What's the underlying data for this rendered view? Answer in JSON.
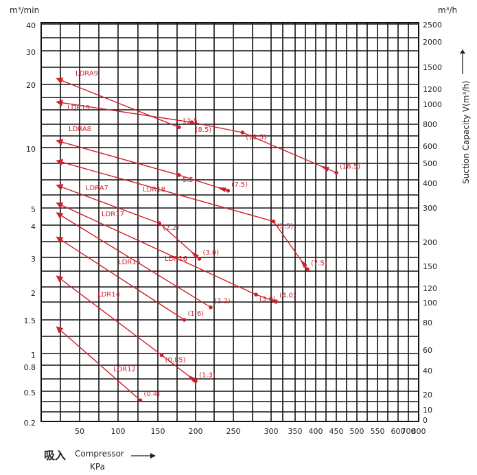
{
  "axes": {
    "left_unit": "m³/min",
    "right_unit": "m³/h",
    "right_label": "Suction Capacity V(m³/h)",
    "x_label_cn": "吸入",
    "x_label_en": "Compressor",
    "x_unit": "KPa"
  },
  "chart_data": {
    "type": "line",
    "x_ticks": [
      "50",
      "100",
      "150",
      "200",
      "250",
      "300",
      "350",
      "400",
      "450",
      "500",
      "550",
      "600",
      "700",
      "800"
    ],
    "y_left_ticks": [
      "40",
      "30",
      "20",
      "10",
      "5",
      "4",
      "3",
      "2",
      "1.5",
      "1",
      "0.8",
      "0.5",
      "0.2"
    ],
    "y_right_ticks": [
      "2500",
      "2000",
      "1500",
      "1200",
      "1000",
      "800",
      "600",
      "500",
      "400",
      "300",
      "200",
      "150",
      "120",
      "100",
      "80",
      "60",
      "40",
      "20",
      "10",
      "0"
    ],
    "series": [
      {
        "name": "LDRA9",
        "points": [
          [
            178,
            12.5
          ],
          [
            20,
            21.5
          ]
        ],
        "labels": [
          "12.5"
        ]
      },
      {
        "name": "LDR19",
        "points": [
          [
            450,
            7.5
          ],
          [
            262,
            11.8
          ],
          [
            195,
            13.2
          ],
          [
            20,
            16.5
          ]
        ],
        "labels": [
          "(18.5)",
          "(12.5)",
          "(8.5)"
        ]
      },
      {
        "name": "LDRA8",
        "points": [
          [
            243,
            6.1
          ],
          [
            178,
            7.3
          ],
          [
            20,
            10.8
          ]
        ],
        "labels": [
          "(7.5)",
          "5.5"
        ]
      },
      {
        "name": "LDR18",
        "points": [
          [
            380,
            2.6
          ],
          [
            305,
            4.2
          ],
          [
            20,
            8.6
          ]
        ],
        "labels": [
          "(7.5)",
          "(5.5)"
        ]
      },
      {
        "name": "LDRA7",
        "points": [
          [
            205,
            2.95
          ],
          [
            152,
            4.1
          ],
          [
            20,
            6.5
          ]
        ],
        "labels": [
          "(3.0)",
          "(2.2)"
        ]
      },
      {
        "name": "LDR17",
        "points": [
          [
            310,
            1.8
          ],
          [
            280,
            1.93
          ],
          [
            20,
            5.3
          ]
        ],
        "labels": [
          "(4.0)",
          "(3.0)"
        ]
      },
      {
        "name": "LDR16",
        "points": [
          [
            220,
            1.7
          ],
          [
            20,
            4.7
          ]
        ],
        "labels": [
          "(2.2)"
        ]
      },
      {
        "name": "LDR15",
        "points": [
          [
            185,
            1.5
          ],
          [
            20,
            3.6
          ]
        ],
        "labels": [
          "(1.6)"
        ]
      },
      {
        "name": "LDR14",
        "points": [
          [
            200,
            0.6
          ],
          [
            155,
            0.97
          ],
          [
            20,
            2.4
          ]
        ],
        "labels": [
          "(1.3)",
          "(0.85)"
        ]
      },
      {
        "name": "LDR12",
        "points": [
          [
            128,
            0.38
          ],
          [
            20,
            1.38
          ]
        ],
        "labels": [
          "(0.4)"
        ]
      }
    ]
  }
}
